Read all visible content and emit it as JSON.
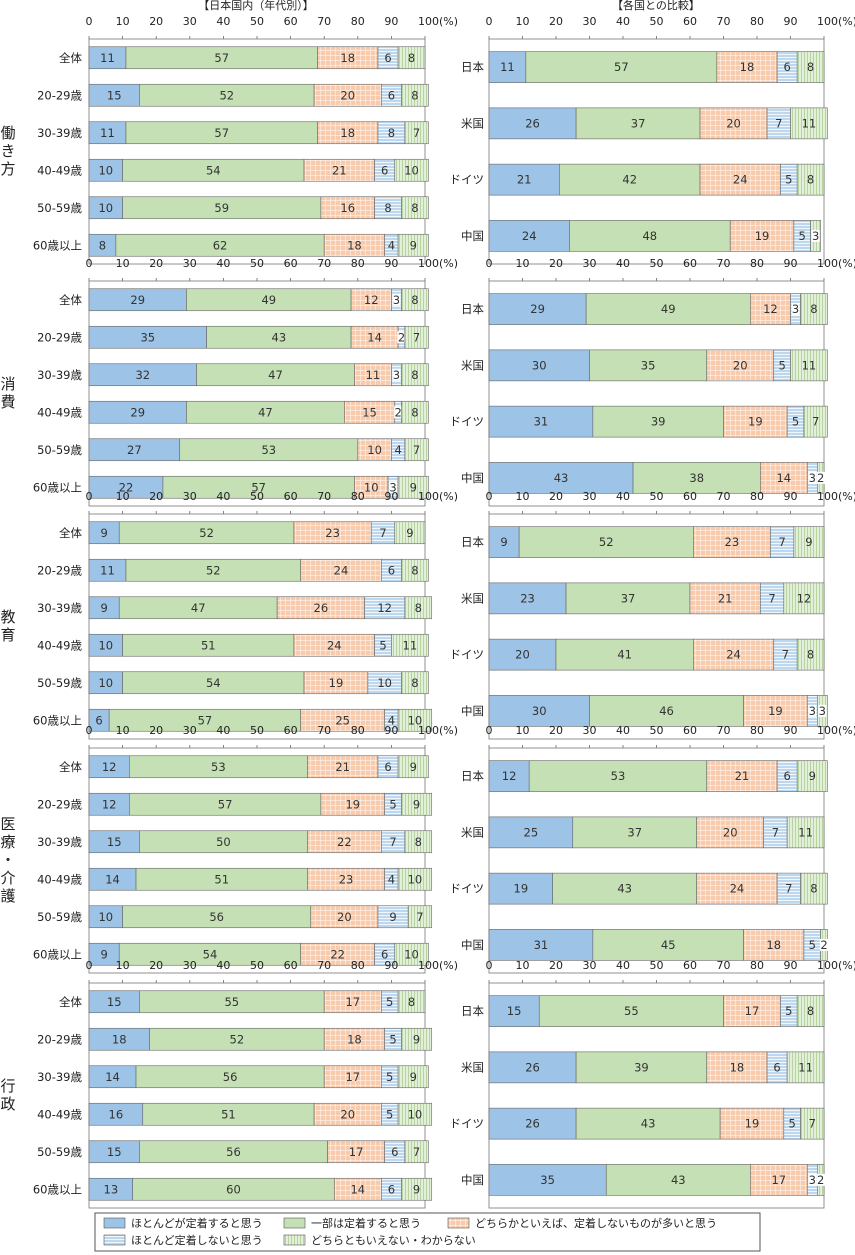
{
  "headers": {
    "left": "【日本国内（年代別）】",
    "right": "【各国との比較】"
  },
  "axis": {
    "ticks": [
      "0",
      "10",
      "20",
      "30",
      "40",
      "50",
      "60",
      "70",
      "80",
      "90",
      "100(%)"
    ]
  },
  "legend": [
    {
      "label": "ほとんどが定着すると思う",
      "color": "#9DC3E6",
      "pattern": "solid"
    },
    {
      "label": "一部は定着すると思う",
      "color": "#C5E0B4",
      "pattern": "solid"
    },
    {
      "label": "どちらかといえば、定着しないものが多いと思う",
      "color": "#F8CBAD",
      "pattern": "grid"
    },
    {
      "label": "ほとんど定着しないと思う",
      "color": "#BDD7EE",
      "pattern": "hlines"
    },
    {
      "label": "どちらともいえない・わからない",
      "color": "#E2F0D9",
      "pattern": "vlines"
    }
  ],
  "chart_data": [
    {
      "type": "bar",
      "group": "働き方",
      "panels": [
        {
          "categories": [
            "全体",
            "20-29歳",
            "30-39歳",
            "40-49歳",
            "50-59歳",
            "60歳以上"
          ],
          "rows": [
            [
              11,
              57,
              18,
              6,
              8
            ],
            [
              15,
              52,
              20,
              6,
              8
            ],
            [
              11,
              57,
              18,
              8,
              7
            ],
            [
              10,
              54,
              21,
              6,
              10
            ],
            [
              10,
              59,
              16,
              8,
              8
            ],
            [
              8,
              62,
              18,
              4,
              9
            ]
          ]
        },
        {
          "categories": [
            "日本",
            "米国",
            "ドイツ",
            "中国"
          ],
          "rows": [
            [
              11,
              57,
              18,
              6,
              8
            ],
            [
              26,
              37,
              20,
              7,
              11
            ],
            [
              21,
              42,
              24,
              5,
              8
            ],
            [
              24,
              48,
              19,
              5,
              3
            ]
          ]
        }
      ]
    },
    {
      "type": "bar",
      "group": "消費",
      "panels": [
        {
          "categories": [
            "全体",
            "20-29歳",
            "30-39歳",
            "40-49歳",
            "50-59歳",
            "60歳以上"
          ],
          "rows": [
            [
              29,
              49,
              12,
              3,
              8
            ],
            [
              35,
              43,
              14,
              2,
              7
            ],
            [
              32,
              47,
              11,
              3,
              8
            ],
            [
              29,
              47,
              15,
              2,
              8
            ],
            [
              27,
              53,
              10,
              4,
              7
            ],
            [
              22,
              57,
              10,
              3,
              9
            ]
          ]
        },
        {
          "categories": [
            "日本",
            "米国",
            "ドイツ",
            "中国"
          ],
          "rows": [
            [
              29,
              49,
              12,
              3,
              8
            ],
            [
              30,
              35,
              20,
              5,
              11
            ],
            [
              31,
              39,
              19,
              5,
              7
            ],
            [
              43,
              38,
              14,
              3,
              2
            ]
          ]
        }
      ]
    },
    {
      "type": "bar",
      "group": "教育",
      "panels": [
        {
          "categories": [
            "全体",
            "20-29歳",
            "30-39歳",
            "40-49歳",
            "50-59歳",
            "60歳以上"
          ],
          "rows": [
            [
              9,
              52,
              23,
              7,
              9
            ],
            [
              11,
              52,
              24,
              6,
              8
            ],
            [
              9,
              47,
              26,
              12,
              8
            ],
            [
              10,
              51,
              24,
              5,
              11
            ],
            [
              10,
              54,
              19,
              10,
              8
            ],
            [
              6,
              57,
              25,
              4,
              10
            ]
          ]
        },
        {
          "categories": [
            "日本",
            "米国",
            "ドイツ",
            "中国"
          ],
          "rows": [
            [
              9,
              52,
              23,
              7,
              9
            ],
            [
              23,
              37,
              21,
              7,
              12
            ],
            [
              20,
              41,
              24,
              7,
              8
            ],
            [
              30,
              46,
              19,
              3,
              3
            ]
          ]
        }
      ]
    },
    {
      "type": "bar",
      "group": "医療・介護",
      "panels": [
        {
          "categories": [
            "全体",
            "20-29歳",
            "30-39歳",
            "40-49歳",
            "50-59歳",
            "60歳以上"
          ],
          "rows": [
            [
              12,
              53,
              21,
              6,
              9
            ],
            [
              12,
              57,
              19,
              5,
              9
            ],
            [
              15,
              50,
              22,
              7,
              8
            ],
            [
              14,
              51,
              23,
              4,
              10
            ],
            [
              10,
              56,
              20,
              9,
              7
            ],
            [
              9,
              54,
              22,
              6,
              10
            ]
          ]
        },
        {
          "categories": [
            "日本",
            "米国",
            "ドイツ",
            "中国"
          ],
          "rows": [
            [
              12,
              53,
              21,
              6,
              9
            ],
            [
              25,
              37,
              20,
              7,
              11
            ],
            [
              19,
              43,
              24,
              7,
              8
            ],
            [
              31,
              45,
              18,
              5,
              2
            ]
          ]
        }
      ]
    },
    {
      "type": "bar",
      "group": "行政",
      "panels": [
        {
          "categories": [
            "全体",
            "20-29歳",
            "30-39歳",
            "40-49歳",
            "50-59歳",
            "60歳以上"
          ],
          "rows": [
            [
              15,
              55,
              17,
              5,
              8
            ],
            [
              18,
              52,
              18,
              5,
              9
            ],
            [
              14,
              56,
              17,
              5,
              9
            ],
            [
              16,
              51,
              20,
              5,
              10
            ],
            [
              15,
              56,
              17,
              6,
              7
            ],
            [
              13,
              60,
              14,
              6,
              9
            ]
          ]
        },
        {
          "categories": [
            "日本",
            "米国",
            "ドイツ",
            "中国"
          ],
          "rows": [
            [
              15,
              55,
              17,
              5,
              8
            ],
            [
              26,
              39,
              18,
              6,
              11
            ],
            [
              26,
              43,
              19,
              5,
              7
            ],
            [
              35,
              43,
              17,
              3,
              2
            ]
          ]
        }
      ]
    }
  ]
}
